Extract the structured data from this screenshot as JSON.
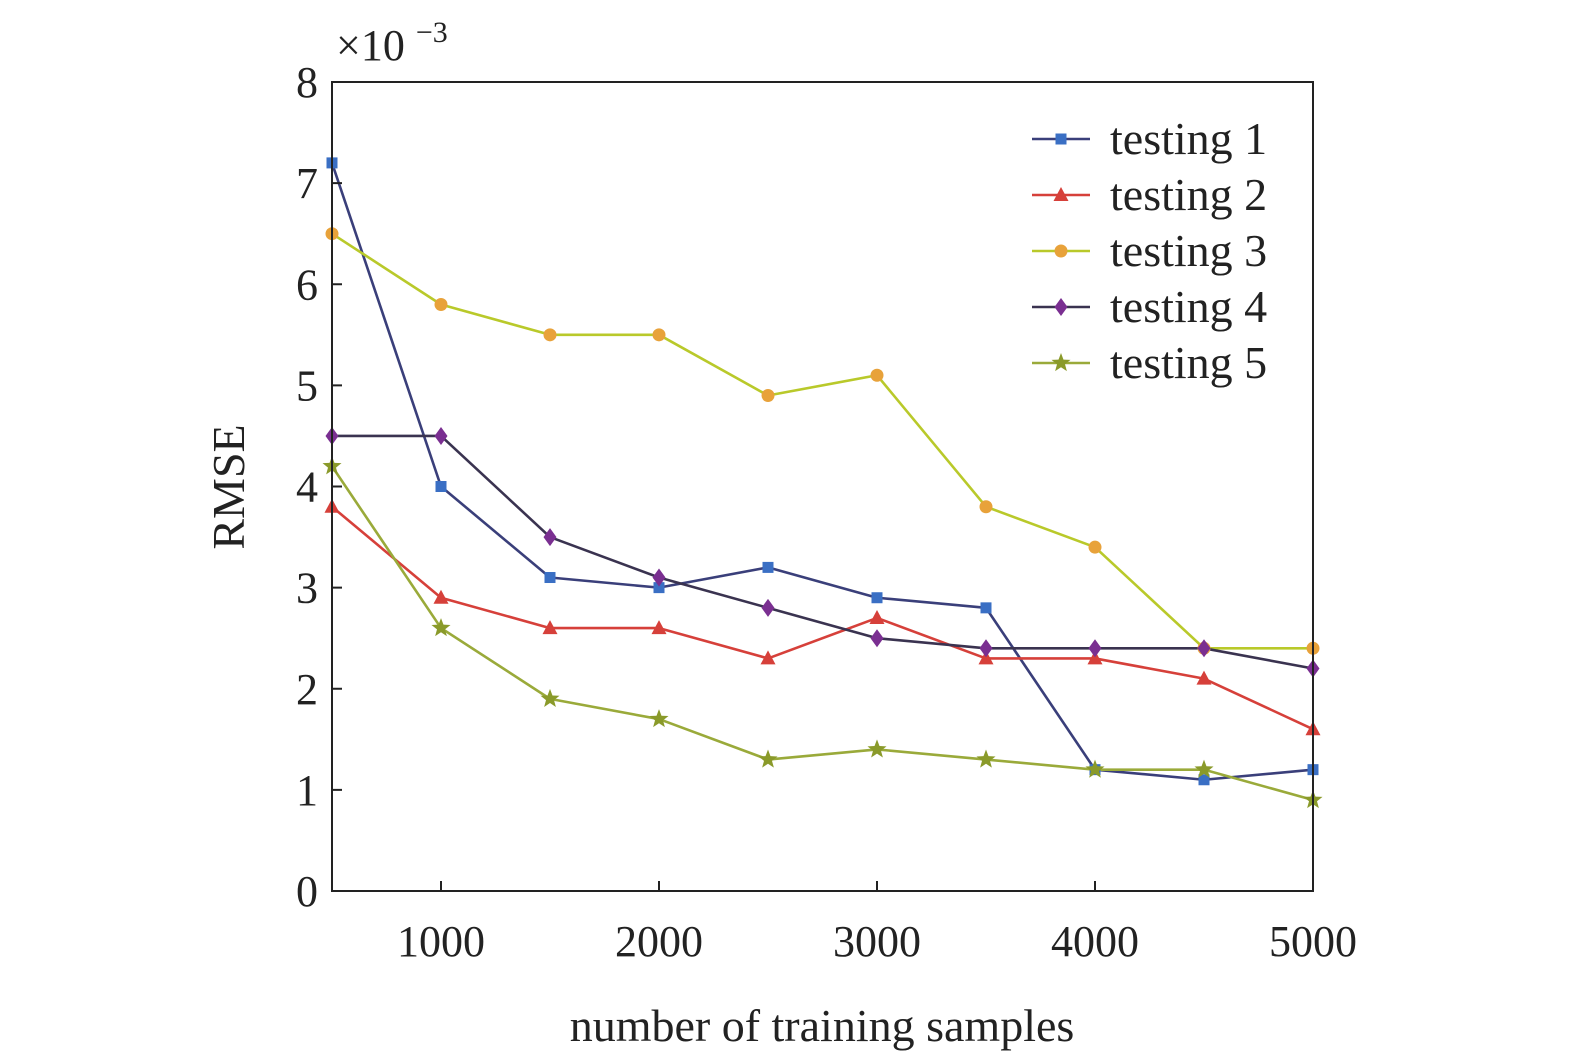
{
  "chart_data": {
    "type": "line",
    "title": "",
    "xlabel": "number of training samples",
    "ylabel": "RMSE",
    "y_multiplier": {
      "base": "×10",
      "exponent": "−3"
    },
    "xlim": [
      500,
      5000
    ],
    "ylim": [
      0,
      8
    ],
    "x_ticks": [
      1000,
      2000,
      3000,
      4000,
      5000
    ],
    "y_ticks": [
      0,
      1,
      2,
      3,
      4,
      5,
      6,
      7,
      8
    ],
    "grid": false,
    "legend_position": "top-right",
    "x": [
      500,
      1000,
      1500,
      2000,
      2500,
      3000,
      3500,
      4000,
      4500,
      5000
    ],
    "series": [
      {
        "name": "testing 1",
        "color": "#3a6fc4",
        "line_color": "#3a3f7a",
        "marker": "square",
        "values": [
          7.2,
          4.0,
          3.1,
          3.0,
          3.2,
          2.9,
          2.8,
          1.2,
          1.1,
          1.2
        ]
      },
      {
        "name": "testing 2",
        "color": "#d6403a",
        "line_color": "#d6403a",
        "marker": "triangle",
        "values": [
          3.8,
          2.9,
          2.6,
          2.6,
          2.3,
          2.7,
          2.3,
          2.3,
          2.1,
          1.6
        ]
      },
      {
        "name": "testing 3",
        "color": "#e8a23a",
        "line_color": "#b9c92a",
        "marker": "circle",
        "values": [
          6.5,
          5.8,
          5.5,
          5.5,
          4.9,
          5.1,
          3.8,
          3.4,
          2.4,
          2.4
        ]
      },
      {
        "name": "testing 4",
        "color": "#7a2f91",
        "line_color": "#3a3350",
        "marker": "diamond",
        "values": [
          4.5,
          4.5,
          3.5,
          3.1,
          2.8,
          2.5,
          2.4,
          2.4,
          2.4,
          2.2
        ]
      },
      {
        "name": "testing 5",
        "color": "#8a9a2a",
        "line_color": "#9aaa3a",
        "marker": "star",
        "values": [
          4.2,
          2.6,
          1.9,
          1.7,
          1.3,
          1.4,
          1.3,
          1.2,
          1.2,
          0.9
        ]
      }
    ]
  }
}
